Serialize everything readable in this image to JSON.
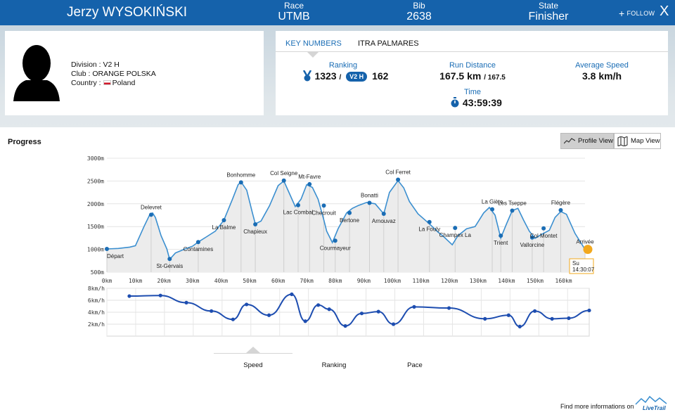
{
  "header": {
    "runner_name": "Jerzy WYSOKIŃSKI",
    "race_label": "Race",
    "race_value": "UTMB",
    "bib_label": "Bib",
    "bib_value": "2638",
    "state_label": "State",
    "state_value": "Finisher",
    "follow_label": "FOLLOW",
    "close_label": "X"
  },
  "profile": {
    "division_label": "Division : V2 H",
    "club_label": "Club : ORANGE POLSKA",
    "country_prefix": "Country :",
    "country_value": "Poland"
  },
  "key_numbers": {
    "tab_key": "KEY NUMBERS",
    "tab_itra": "ITRA PALMARES",
    "ranking_label": "Ranking",
    "ranking_overall": "1323",
    "ranking_sep": "/",
    "ranking_category": "V2 H",
    "ranking_category_rank": "162",
    "distance_label": "Run Distance",
    "distance_value": "167.5 km",
    "distance_total": "/ 167.5",
    "speed_label": "Average Speed",
    "speed_value": "3.8 km/h",
    "time_label": "Time",
    "time_value": "43:59:39"
  },
  "progress": {
    "title": "Progress",
    "profile_view_label": "Profile View",
    "map_view_label": "Map View",
    "finish_tag_day": "Su",
    "finish_tag_time": "14:30:07",
    "subtabs": [
      "Speed",
      "Ranking",
      "Pace"
    ],
    "footer_text": "Find more informations on",
    "brand": "LiveTrail"
  },
  "colors": {
    "brand_blue": "#1562ab",
    "line_blue": "#3b8fd0",
    "speed_blue": "#1d4db0",
    "finish_orange": "#f2a81d"
  },
  "chart_data": [
    {
      "type": "area",
      "title": "",
      "xlabel": "",
      "ylabel": "",
      "x_unit": "km",
      "y_unit": "m",
      "xlim": [
        0,
        167.5
      ],
      "ylim": [
        500,
        3000
      ],
      "x_ticks": [
        0,
        10,
        20,
        30,
        40,
        50,
        60,
        70,
        80,
        90,
        100,
        110,
        120,
        130,
        140,
        150,
        160
      ],
      "x_tick_labels": [
        "0km",
        "10km",
        "20km",
        "30km",
        "40km",
        "50km",
        "60km",
        "70km",
        "80km",
        "90km",
        "100km",
        "110km",
        "120km",
        "130km",
        "140km",
        "150km",
        "160km"
      ],
      "y_ticks": [
        500,
        1000,
        1500,
        2000,
        2500,
        3000
      ],
      "y_tick_labels": [
        "500m",
        "1000m",
        "1500m",
        "2000m",
        "2500m",
        "3000m"
      ],
      "profile": [
        [
          0,
          1010
        ],
        [
          4,
          1020
        ],
        [
          8,
          1050
        ],
        [
          10,
          1080
        ],
        [
          13,
          1500
        ],
        [
          15,
          1760
        ],
        [
          16,
          1800
        ],
        [
          17,
          1700
        ],
        [
          19,
          1300
        ],
        [
          21,
          1010
        ],
        [
          22,
          780
        ],
        [
          24,
          920
        ],
        [
          27,
          1000
        ],
        [
          30,
          1070
        ],
        [
          32,
          1160
        ],
        [
          35,
          1280
        ],
        [
          38,
          1400
        ],
        [
          41,
          1640
        ],
        [
          44,
          2100
        ],
        [
          46,
          2420
        ],
        [
          47,
          2480
        ],
        [
          49,
          2300
        ],
        [
          51,
          1800
        ],
        [
          52,
          1560
        ],
        [
          54,
          1620
        ],
        [
          57,
          1960
        ],
        [
          60,
          2400
        ],
        [
          62,
          2500
        ],
        [
          64,
          2220
        ],
        [
          66,
          1940
        ],
        [
          68,
          2100
        ],
        [
          70,
          2420
        ],
        [
          72,
          2360
        ],
        [
          74,
          2100
        ],
        [
          76,
          1650
        ],
        [
          77,
          1400
        ],
        [
          79,
          1150
        ],
        [
          81,
          1450
        ],
        [
          84,
          1800
        ],
        [
          86,
          1900
        ],
        [
          88,
          1960
        ],
        [
          91,
          2030
        ],
        [
          94,
          2000
        ],
        [
          97,
          1780
        ],
        [
          99,
          2250
        ],
        [
          102,
          2510
        ],
        [
          104,
          2350
        ],
        [
          106,
          2050
        ],
        [
          109,
          1780
        ],
        [
          113,
          1560
        ],
        [
          116,
          1380
        ],
        [
          118,
          1280
        ],
        [
          121,
          1100
        ],
        [
          123,
          1300
        ],
        [
          126,
          1450
        ],
        [
          129,
          1500
        ],
        [
          132,
          1800
        ],
        [
          134,
          1920
        ],
        [
          136,
          1750
        ],
        [
          138,
          1250
        ],
        [
          140,
          1560
        ],
        [
          142,
          1850
        ],
        [
          144,
          1900
        ],
        [
          146,
          1640
        ],
        [
          148,
          1400
        ],
        [
          150,
          1240
        ],
        [
          152,
          1320
        ],
        [
          155,
          1420
        ],
        [
          157,
          1700
        ],
        [
          159,
          1830
        ],
        [
          161,
          1770
        ],
        [
          164,
          1350
        ],
        [
          167.5,
          1000
        ]
      ],
      "checkpoints": [
        {
          "name": "Départ",
          "km": 0,
          "alt": 1010
        },
        {
          "name": "Delevret",
          "km": 15.5,
          "alt": 1760
        },
        {
          "name": "St-Gervais",
          "km": 22,
          "alt": 790
        },
        {
          "name": "Contamines",
          "km": 32,
          "alt": 1160
        },
        {
          "name": "La Balme",
          "km": 41,
          "alt": 1640
        },
        {
          "name": "Bonhomme",
          "km": 47,
          "alt": 2470
        },
        {
          "name": "Chapieux",
          "km": 52,
          "alt": 1550
        },
        {
          "name": "Col Seigne",
          "km": 62,
          "alt": 2510
        },
        {
          "name": "Lac Combal",
          "km": 67,
          "alt": 1970
        },
        {
          "name": "Mt-Favre",
          "km": 71,
          "alt": 2430
        },
        {
          "name": "Checrouit",
          "km": 76,
          "alt": 1960
        },
        {
          "name": "Courmayeur",
          "km": 80,
          "alt": 1190
        },
        {
          "name": "Bertone",
          "km": 85,
          "alt": 1800
        },
        {
          "name": "Bonatti",
          "km": 92,
          "alt": 2020
        },
        {
          "name": "Arnouvaz",
          "km": 97,
          "alt": 1780
        },
        {
          "name": "Col Ferret",
          "km": 102,
          "alt": 2530
        },
        {
          "name": "La Fouly",
          "km": 113,
          "alt": 1600
        },
        {
          "name": "Champex La",
          "km": 122,
          "alt": 1470
        },
        {
          "name": "La Giète",
          "km": 135,
          "alt": 1880
        },
        {
          "name": "Trient",
          "km": 138,
          "alt": 1300
        },
        {
          "name": "Les Tseppe",
          "km": 142,
          "alt": 1850
        },
        {
          "name": "Vallorcine",
          "km": 149,
          "alt": 1260
        },
        {
          "name": "Col Montet",
          "km": 153,
          "alt": 1460
        },
        {
          "name": "Flégère",
          "km": 159,
          "alt": 1860
        },
        {
          "name": "Arrivée",
          "km": 167.5,
          "alt": 1000
        }
      ]
    },
    {
      "type": "line",
      "title": "",
      "series": [
        {
          "name": "Speed",
          "values": [
            [
              7.8,
              6.7
            ],
            [
              18.6,
              6.8
            ],
            [
              27.6,
              5.6
            ],
            [
              36.3,
              4.2
            ],
            [
              43.8,
              2.8
            ],
            [
              48.5,
              5.3
            ],
            [
              56.3,
              3.5
            ],
            [
              64.2,
              7.0
            ],
            [
              68.9,
              2.5
            ],
            [
              73.4,
              5.2
            ],
            [
              77.2,
              4.5
            ],
            [
              82.8,
              1.7
            ],
            [
              88.5,
              3.8
            ],
            [
              94.3,
              4.1
            ],
            [
              99.5,
              2.0
            ],
            [
              106.7,
              4.9
            ],
            [
              118.8,
              4.7
            ],
            [
              131.3,
              2.9
            ],
            [
              139.5,
              3.5
            ],
            [
              143.4,
              1.6
            ],
            [
              148.6,
              4.2
            ],
            [
              154.6,
              2.9
            ],
            [
              160.4,
              3.0
            ],
            [
              167.5,
              4.3
            ]
          ]
        }
      ],
      "x_unit": "km",
      "y_unit": "km/h",
      "xlim": [
        0,
        167.5
      ],
      "ylim": [
        0,
        8
      ],
      "y_ticks": [
        2,
        4,
        6,
        8
      ],
      "y_tick_labels": [
        "2km/h",
        "4km/h",
        "6km/h",
        "8km/h"
      ]
    }
  ]
}
